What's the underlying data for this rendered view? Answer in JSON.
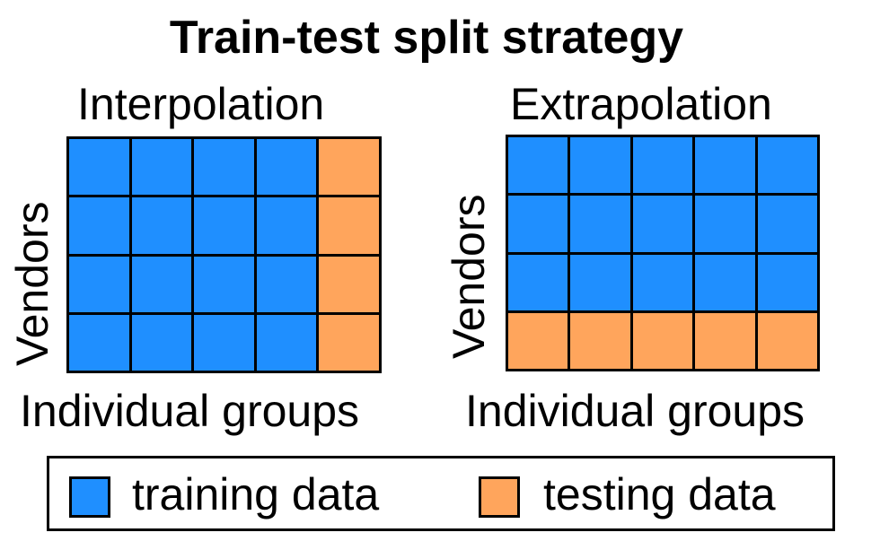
{
  "title": "Train-test split strategy",
  "colors": {
    "training": "#1f8fff",
    "testing": "#ffa55c",
    "grid_line": "#000000"
  },
  "panels": [
    {
      "title": "Interpolation",
      "xlabel": "Individual groups",
      "ylabel": "Vendors",
      "rows": 4,
      "cols": 5,
      "grid": [
        [
          "training",
          "training",
          "training",
          "training",
          "testing"
        ],
        [
          "training",
          "training",
          "training",
          "training",
          "testing"
        ],
        [
          "training",
          "training",
          "training",
          "training",
          "testing"
        ],
        [
          "training",
          "training",
          "training",
          "training",
          "testing"
        ]
      ]
    },
    {
      "title": "Extrapolation",
      "xlabel": "Individual groups",
      "ylabel": "Vendors",
      "rows": 4,
      "cols": 5,
      "grid": [
        [
          "training",
          "training",
          "training",
          "training",
          "training"
        ],
        [
          "training",
          "training",
          "training",
          "training",
          "training"
        ],
        [
          "training",
          "training",
          "training",
          "training",
          "training"
        ],
        [
          "testing",
          "testing",
          "testing",
          "testing",
          "testing"
        ]
      ]
    }
  ],
  "legend": {
    "training_label": "training data",
    "testing_label": "testing data"
  }
}
